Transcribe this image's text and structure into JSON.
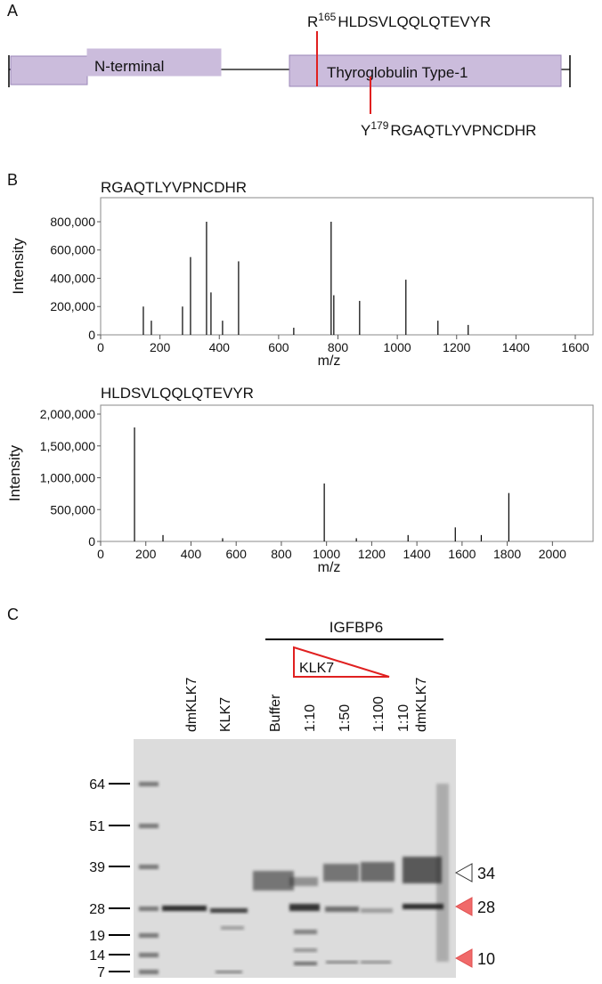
{
  "panel_a": {
    "label": "A",
    "domains": [
      "N-terminal",
      "Thyroglobulin Type-1"
    ],
    "sites": [
      {
        "residue": "R",
        "position": "165",
        "peptide": "HLDSVLQQLQTEVYR"
      },
      {
        "residue": "Y",
        "position": "179",
        "peptide": "RGAQTLYVPNCDHR"
      }
    ]
  },
  "panel_b": {
    "label": "B"
  },
  "chart_data": [
    {
      "type": "bar",
      "title": "RGAQTLYVPNCDHR",
      "x_label": "m/z",
      "y_label": "Intensity",
      "color": "#000000",
      "x": [
        144,
        171,
        276,
        303,
        357,
        372,
        411,
        465,
        651,
        777,
        786,
        873,
        1029,
        1137,
        1239
      ],
      "values": [
        200000,
        100000,
        200000,
        550000,
        800000,
        300000,
        100000,
        520000,
        50000,
        800000,
        280000,
        240000,
        390000,
        100000,
        70000
      ],
      "xlim": [
        0,
        1660
      ],
      "ylim": [
        0,
        970000
      ],
      "xticks": [
        0,
        200,
        400,
        600,
        800,
        1000,
        1200,
        1400,
        1600
      ],
      "yticks": [
        0,
        {
          "value": 200000,
          "label": "200,000"
        },
        {
          "value": 400000,
          "label": "400,000"
        },
        {
          "value": 600000,
          "label": "600,000"
        },
        {
          "value": 800000,
          "label": "800,000"
        }
      ]
    },
    {
      "type": "bar",
      "title": "HLDSVLQQLQTEVYR",
      "x_label": "m/z",
      "y_label": "Intensity",
      "color": "#000000",
      "x": [
        150,
        276,
        540,
        990,
        1132,
        1361,
        1570,
        1685,
        1807
      ],
      "values": [
        1790000,
        100000,
        50000,
        910000,
        50000,
        100000,
        220000,
        100000,
        760000
      ],
      "xlim": [
        0,
        2180
      ],
      "ylim": [
        0,
        2140000
      ],
      "xticks": [
        0,
        200,
        400,
        600,
        800,
        1000,
        1200,
        1400,
        1600,
        1800,
        2000
      ],
      "yticks": [
        0,
        {
          "value": 500000,
          "label": "500,000"
        },
        {
          "value": 1000000,
          "label": "1,000,000"
        },
        {
          "value": 1500000,
          "label": "1,500,000"
        },
        {
          "value": 2000000,
          "label": "2,000,000"
        }
      ]
    }
  ],
  "panel_c": {
    "label": "C",
    "group": "IGFBP6",
    "enzyme": "KLK7",
    "lanes": [
      [
        "dmKLK7"
      ],
      [
        "KLK7"
      ],
      [
        "Buffer"
      ],
      [
        "1:10"
      ],
      [
        "1:50"
      ],
      [
        "1:100"
      ],
      [
        "1:10",
        "dmKLK7"
      ]
    ],
    "markers": [
      64,
      51,
      39,
      28,
      19,
      14,
      7
    ],
    "bands": [
      34,
      28,
      10
    ]
  }
}
